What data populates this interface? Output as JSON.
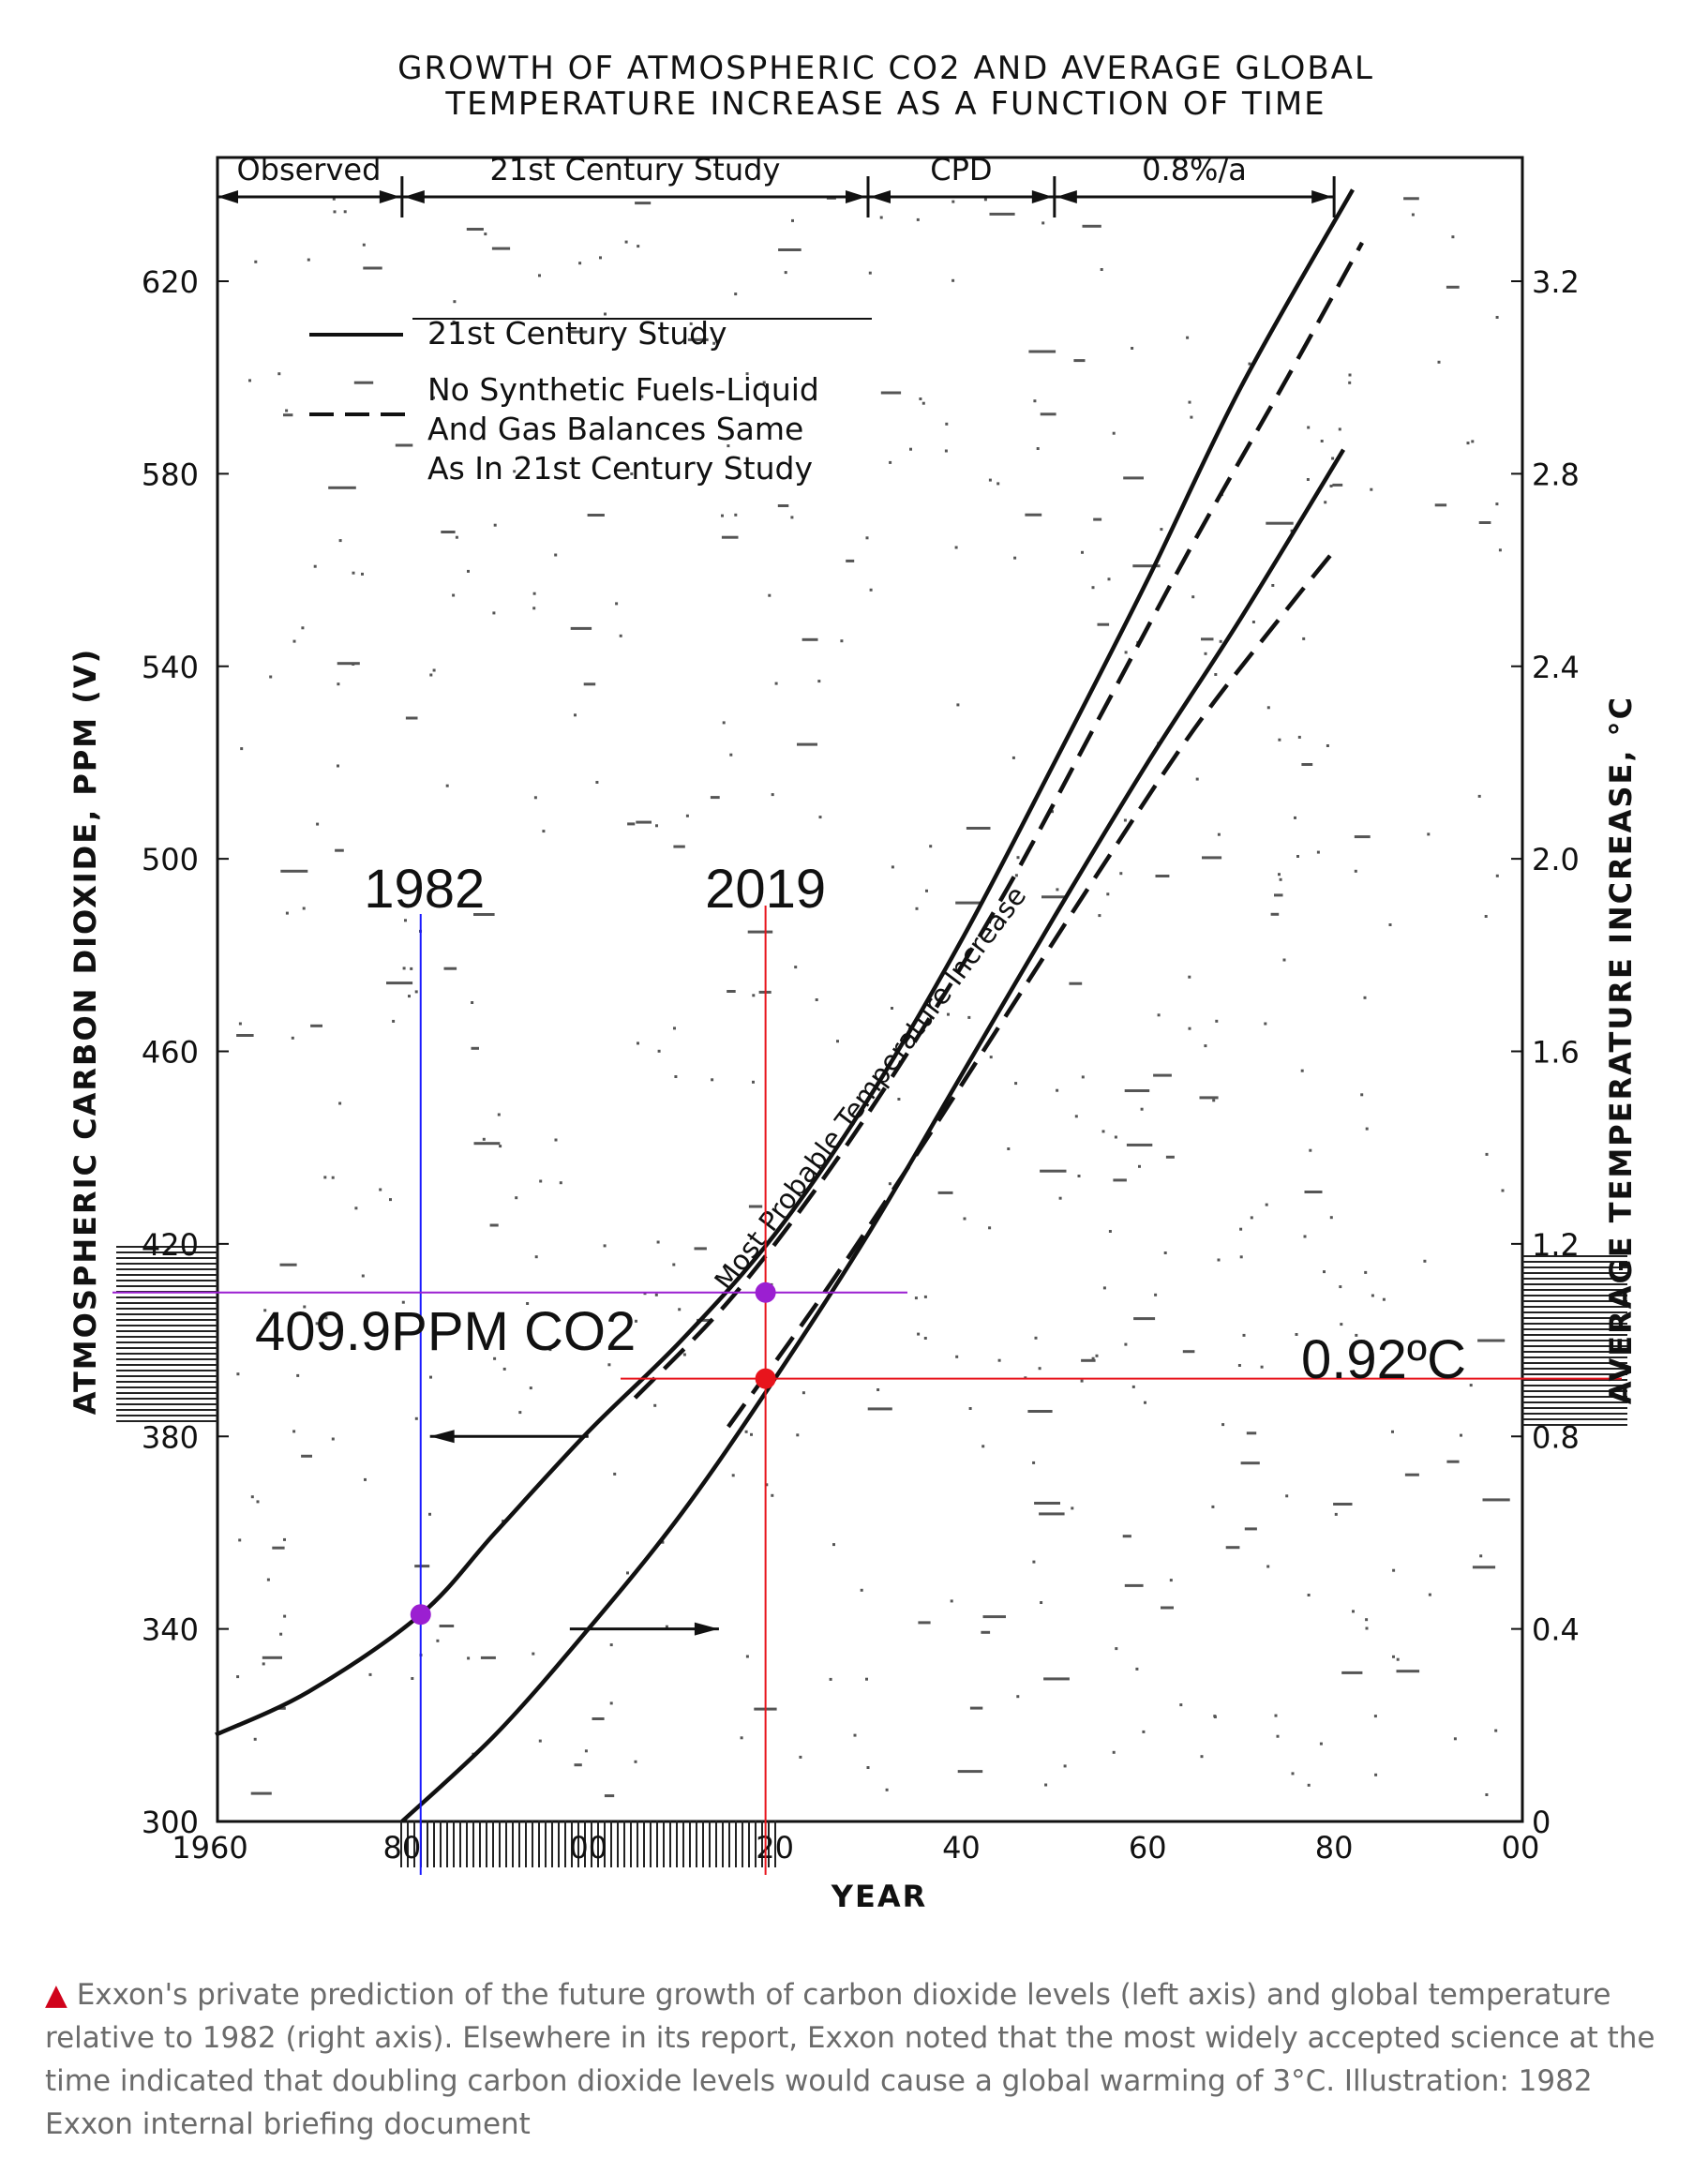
{
  "chart_data": {
    "type": "line",
    "title_lines": [
      "GROWTH OF ATMOSPHERIC CO2 AND AVERAGE GLOBAL",
      "TEMPERATURE INCREASE AS A FUNCTION OF TIME"
    ],
    "xlabel": "YEAR",
    "ylabel_left": "ATMOSPHERIC CARBON DIOXIDE, PPM (V)",
    "ylabel_right": "AVERAGE TEMPERATURE INCREASE, °C",
    "xlim": [
      1960,
      2100
    ],
    "ylim_left": [
      300,
      640
    ],
    "ylim_right": [
      0,
      3.4
    ],
    "x_ticks": [
      {
        "value": 1960,
        "label": "1960"
      },
      {
        "value": 1980,
        "label": "80"
      },
      {
        "value": 2000,
        "label": "00"
      },
      {
        "value": 2020,
        "label": "20"
      },
      {
        "value": 2040,
        "label": "40"
      },
      {
        "value": 2060,
        "label": "60"
      },
      {
        "value": 2080,
        "label": "80"
      },
      {
        "value": 2100,
        "label": "00"
      }
    ],
    "y_left_ticks": [
      {
        "value": 300,
        "label": "300"
      },
      {
        "value": 340,
        "label": "340"
      },
      {
        "value": 380,
        "label": "380"
      },
      {
        "value": 420,
        "label": "420"
      },
      {
        "value": 460,
        "label": "460"
      },
      {
        "value": 500,
        "label": "500"
      },
      {
        "value": 540,
        "label": "540"
      },
      {
        "value": 580,
        "label": "580"
      },
      {
        "value": 620,
        "label": "620"
      }
    ],
    "y_right_ticks": [
      {
        "value": 0,
        "label": "0"
      },
      {
        "value": 0.4,
        "label": "0.4"
      },
      {
        "value": 0.8,
        "label": "0.8"
      },
      {
        "value": 1.2,
        "label": "1.2"
      },
      {
        "value": 1.6,
        "label": "1.6"
      },
      {
        "value": 2.0,
        "label": "2.0"
      },
      {
        "value": 2.4,
        "label": "2.4"
      },
      {
        "value": 2.8,
        "label": "2.8"
      },
      {
        "value": 3.2,
        "label": "3.2"
      }
    ],
    "phases": [
      {
        "label": "Observed",
        "from": 1960,
        "to": 1980
      },
      {
        "label": "21st Century Study",
        "from": 1980,
        "to": 2030
      },
      {
        "label": "CPD",
        "from": 2030,
        "to": 2050
      },
      {
        "label": "0.8%/a",
        "from": 2050,
        "to": 2080
      }
    ],
    "legend": [
      {
        "style": "solid",
        "label_lines": [
          "21st Century Study"
        ]
      },
      {
        "style": "dashed",
        "label_lines": [
          "No Synthetic Fuels-Liquid",
          "And Gas Balances Same",
          "As In 21st Century Study"
        ]
      }
    ],
    "series": [
      {
        "axis": "left",
        "style": "solid",
        "points": [
          [
            1960,
            318
          ],
          [
            1970,
            327
          ],
          [
            1982,
            343
          ],
          [
            1990,
            360
          ],
          [
            2000,
            381
          ],
          [
            2010,
            400
          ],
          [
            2020,
            422
          ],
          [
            2030,
            450
          ],
          [
            2040,
            483
          ],
          [
            2050,
            520
          ],
          [
            2060,
            558
          ],
          [
            2070,
            598
          ],
          [
            2082,
            639
          ]
        ]
      },
      {
        "axis": "left",
        "style": "dashed",
        "points": [
          [
            2005,
            388
          ],
          [
            2015,
            408
          ],
          [
            2025,
            433
          ],
          [
            2035,
            462
          ],
          [
            2045,
            494
          ],
          [
            2055,
            530
          ],
          [
            2065,
            566
          ],
          [
            2075,
            600
          ],
          [
            2083,
            628
          ]
        ]
      },
      {
        "axis": "right",
        "style": "solid",
        "points": [
          [
            1980,
            0.0
          ],
          [
            1990,
            0.18
          ],
          [
            2000,
            0.4
          ],
          [
            2010,
            0.64
          ],
          [
            2020,
            0.92
          ],
          [
            2030,
            1.22
          ],
          [
            2040,
            1.55
          ],
          [
            2050,
            1.88
          ],
          [
            2060,
            2.2
          ],
          [
            2070,
            2.5
          ],
          [
            2081,
            2.85
          ]
        ]
      },
      {
        "axis": "right",
        "style": "dashed",
        "points": [
          [
            2015,
            0.82
          ],
          [
            2025,
            1.09
          ],
          [
            2035,
            1.38
          ],
          [
            2045,
            1.68
          ],
          [
            2055,
            1.98
          ],
          [
            2065,
            2.27
          ],
          [
            2075,
            2.52
          ],
          [
            2080,
            2.64
          ]
        ]
      }
    ],
    "curve_label": "Most Probable Temperature Increase",
    "arrows": [
      {
        "from": [
          2000,
          380
        ],
        "to": [
          1983,
          380
        ],
        "axis": "left"
      },
      {
        "from": [
          1998,
          340
        ],
        "to": [
          2014,
          340
        ],
        "axis": "left"
      }
    ],
    "annotations": [
      {
        "label": "1982",
        "year": 1982,
        "color": "#1a1aff"
      },
      {
        "label": "2019",
        "year": 2019,
        "color": "#e8141c"
      },
      {
        "label": "409.9PPM CO2",
        "co2": 409.9,
        "color": "#9b1fd1"
      },
      {
        "label": "0.92ºC",
        "temp": 0.92,
        "color": "#e8141c"
      }
    ],
    "markers": [
      {
        "year": 1982,
        "co2": 343,
        "color": "#9b1fd1"
      },
      {
        "year": 2019,
        "co2": 409.9,
        "color": "#9b1fd1"
      },
      {
        "year": 2019,
        "temp": 0.92,
        "color": "#e8141c"
      }
    ]
  },
  "caption": {
    "marker": "▲",
    "text": " Exxon's private prediction of the future growth of carbon dioxide levels (left axis) and global temperature relative to 1982 (right axis). Elsewhere in its report, Exxon noted that the most widely accepted science at the time indicated that doubling carbon dioxide levels would cause a global warming of 3°C. Illustration: 1982 Exxon internal briefing document"
  }
}
